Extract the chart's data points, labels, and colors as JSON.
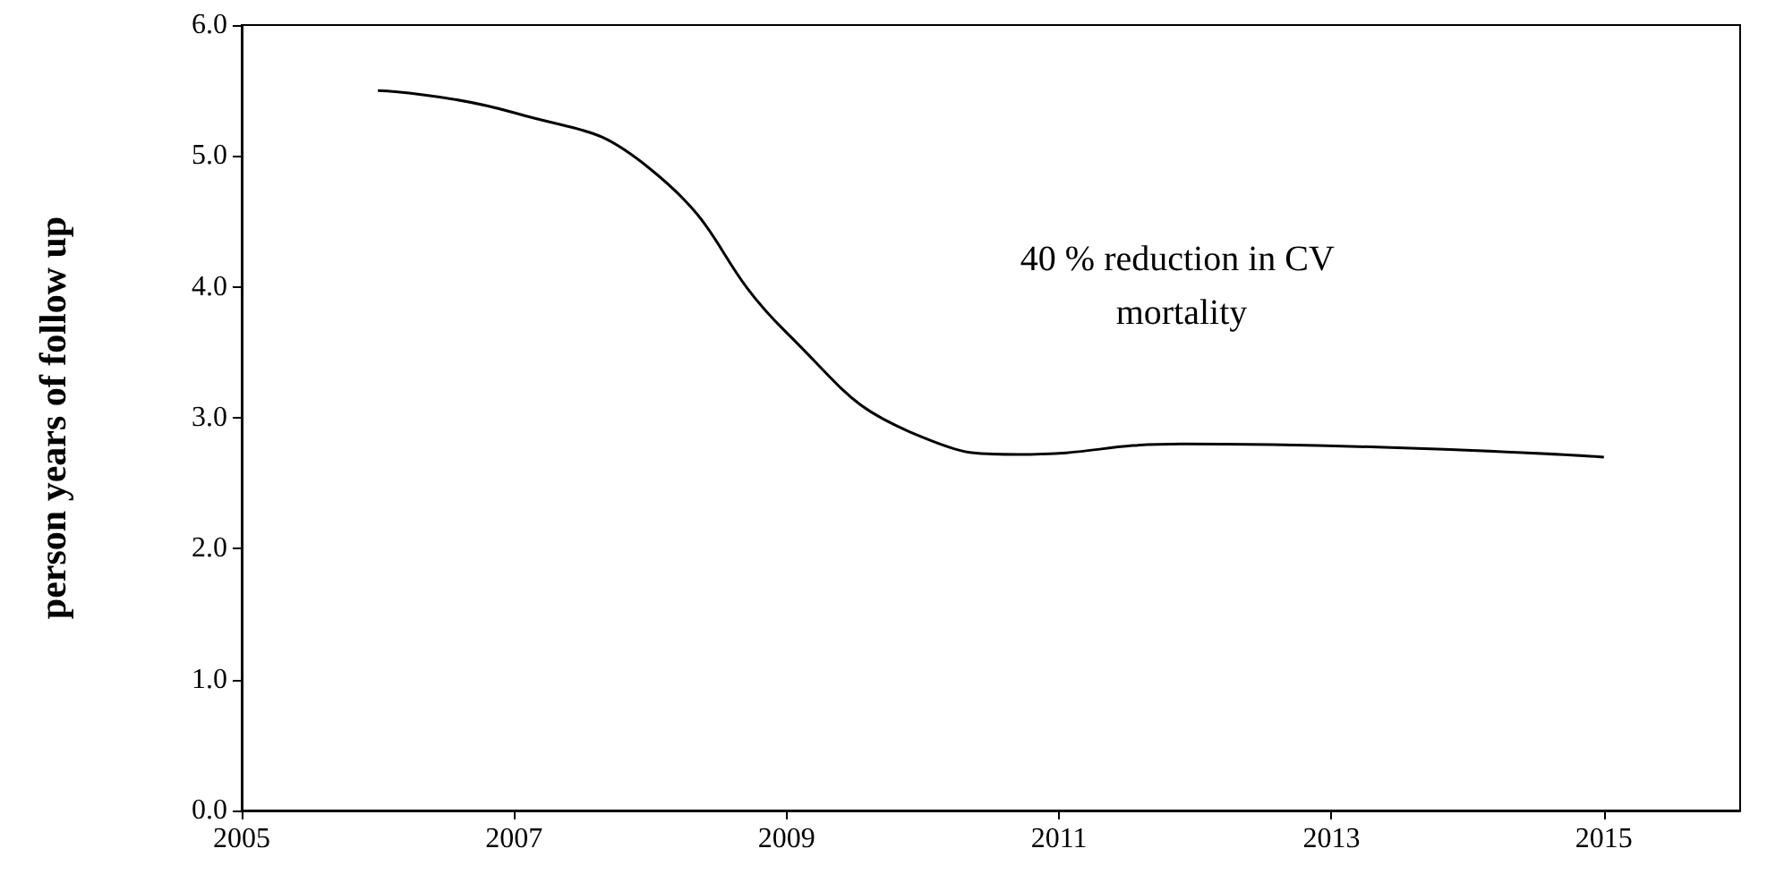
{
  "chart_data": {
    "type": "line",
    "ylabel": "person years of follow up",
    "annotations": [
      "40 % reduction in CV mortality"
    ],
    "x": [
      2006,
      2007,
      2008,
      2009,
      2010,
      2010.7,
      2011.9,
      2015
    ],
    "series": [
      {
        "color": "#000000",
        "values": [
          5.5,
          5.33,
          4.9,
          3.65,
          2.85,
          2.72,
          2.8,
          2.7
        ]
      }
    ],
    "xlim": [
      2005,
      2016
    ],
    "xticks": [
      2005,
      2007,
      2009,
      2011,
      2013,
      2015
    ],
    "ylim": [
      0,
      6
    ],
    "yticks": [
      {
        "value": 0,
        "label": "0.0"
      },
      {
        "value": 1,
        "label": "1.0"
      },
      {
        "value": 2,
        "label": "2.0"
      },
      {
        "value": 3,
        "label": "3.0"
      },
      {
        "value": 4,
        "label": "4.0"
      },
      {
        "value": 5,
        "label": "5.0"
      },
      {
        "value": 6,
        "label": "6.0"
      }
    ],
    "grid": false,
    "marker": "none",
    "line_style": "solid"
  }
}
